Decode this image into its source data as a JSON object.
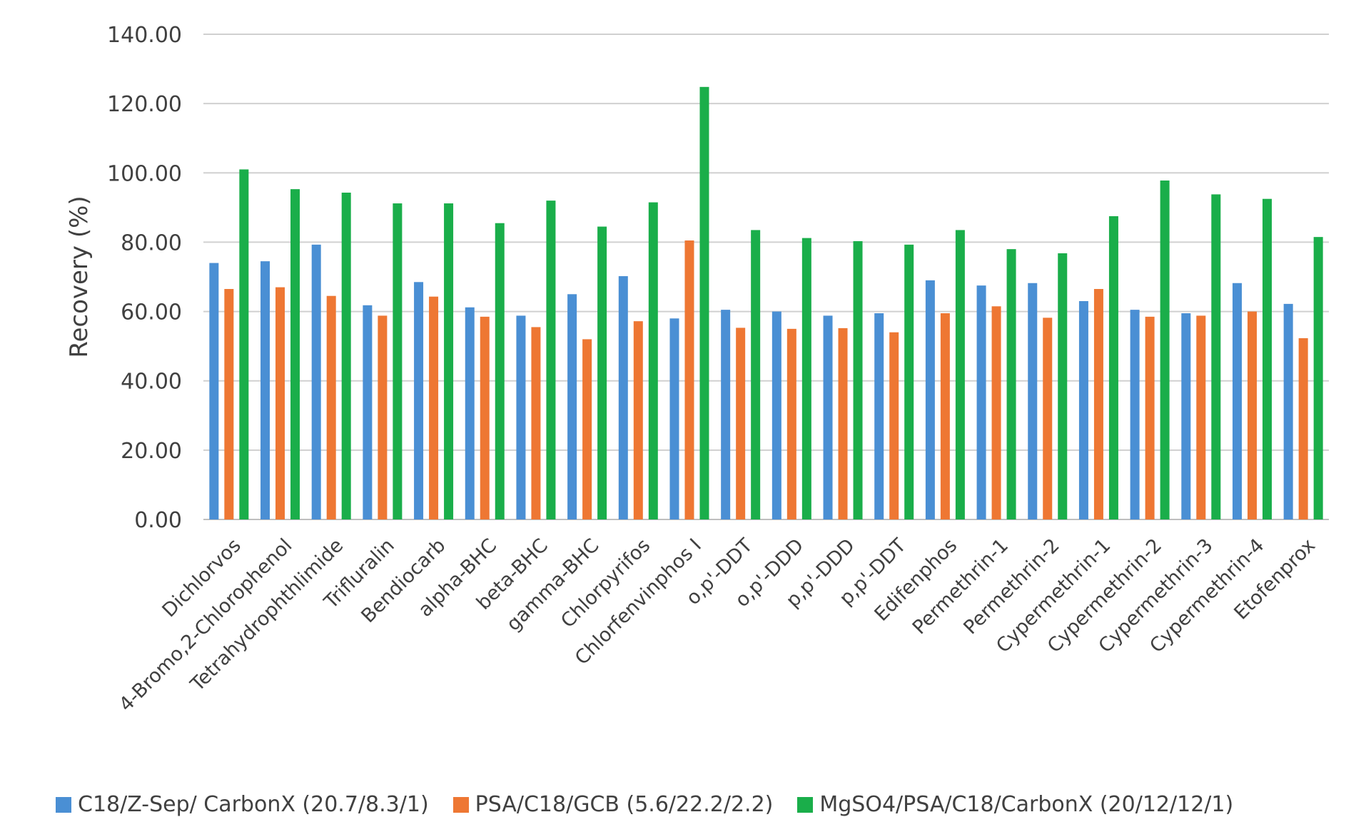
{
  "chart_data": {
    "type": "bar",
    "title": "",
    "xlabel": "",
    "ylabel": "Recovery (%)",
    "ylim": [
      0,
      140
    ],
    "yticks": [
      "0.00",
      "20.00",
      "40.00",
      "60.00",
      "80.00",
      "100.00",
      "120.00",
      "140.00"
    ],
    "grid": "horizontal",
    "legend_position": "bottom",
    "categories": [
      "Dichlorvos",
      "4-Bromo,2-Chlorophenol",
      "Tetrahydrophthlimide",
      "Trifluralin",
      "Bendiocarb",
      "alpha-BHC",
      "beta-BHC",
      "gamma-BHC",
      "Chlorpyrifos",
      "Chlorfenvinphos I",
      "o,p'-DDT",
      "o,p'-DDD",
      "p,p'-DDD",
      "p,p'-DDT",
      "Edifenphos",
      "Permethrin-1",
      "Permethrin-2",
      "Cypermethrin-1",
      "Cypermethrin-2",
      "Cypermethrin-3",
      "Cypermethrin-4",
      "Etofenprox"
    ],
    "series": [
      {
        "name": "C18/Z-Sep/ CarbonX (20.7/8.3/1)",
        "color": "#4a8fd4",
        "values": [
          74.0,
          74.5,
          79.3,
          61.8,
          68.5,
          61.2,
          58.8,
          65.0,
          70.2,
          58.0,
          60.5,
          60.0,
          58.8,
          59.5,
          69.0,
          67.5,
          68.2,
          63.0,
          60.5,
          59.5,
          68.2,
          62.2
        ]
      },
      {
        "name": "PSA/C18/GCB (5.6/22.2/2.2)",
        "color": "#ee7733",
        "values": [
          66.5,
          67.0,
          64.5,
          58.8,
          64.3,
          58.5,
          55.5,
          52.0,
          57.2,
          80.5,
          55.3,
          55.0,
          55.2,
          54.0,
          59.5,
          61.5,
          58.2,
          66.5,
          58.5,
          58.8,
          60.0,
          52.3
        ]
      },
      {
        "name": "MgSO4/PSA/C18/CarbonX (20/12/12/1)",
        "color": "#1aae4a",
        "values": [
          101.0,
          95.3,
          94.3,
          91.2,
          91.2,
          85.5,
          92.0,
          84.5,
          91.5,
          124.8,
          83.5,
          81.2,
          80.3,
          79.3,
          83.5,
          78.0,
          76.8,
          87.5,
          97.8,
          93.8,
          92.5,
          81.5
        ]
      }
    ]
  }
}
